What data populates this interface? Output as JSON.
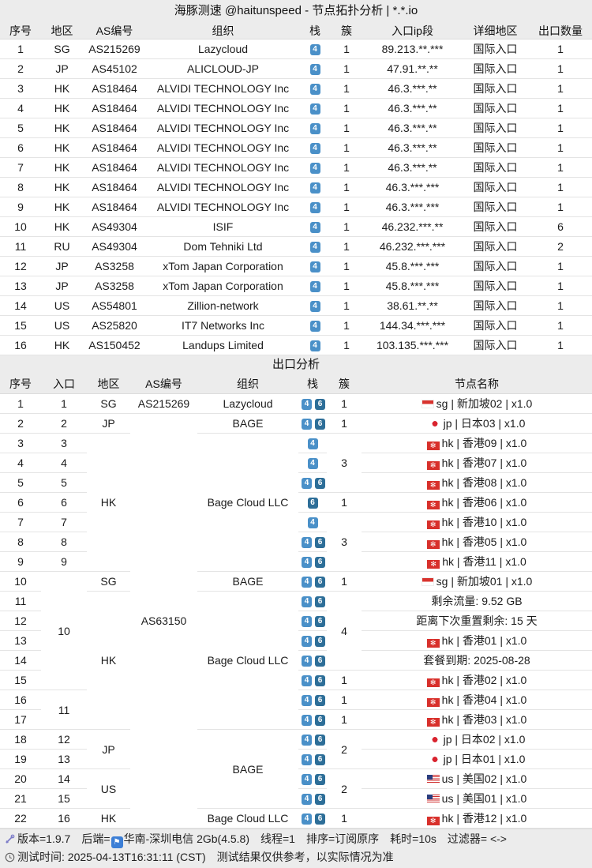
{
  "title": "海豚测速 @haitunspeed - 节点拓扑分析 | *.*.io",
  "colors": {
    "ipv4_badge": "#4a90c8",
    "ipv6_badge": "#2d6e98",
    "backend_badge": "#3d7fd6",
    "header_bg": "#ececec"
  },
  "entry": {
    "headers": [
      "序号",
      "地区",
      "AS编号",
      "组织",
      "栈",
      "簇",
      "入口ip段",
      "详细地区",
      "出口数量"
    ],
    "rows": [
      {
        "no": "1",
        "region": "SG",
        "asn": "AS215269",
        "org": "Lazycloud",
        "stack": [
          "4"
        ],
        "cluster": "1",
        "ip": "89.213.**.***",
        "detail": "国际入口",
        "exits": "1"
      },
      {
        "no": "2",
        "region": "JP",
        "asn": "AS45102",
        "org": "ALICLOUD-JP",
        "stack": [
          "4"
        ],
        "cluster": "1",
        "ip": "47.91.**.**",
        "detail": "国际入口",
        "exits": "1"
      },
      {
        "no": "3",
        "region": "HK",
        "asn": "AS18464",
        "org": "ALVIDI TECHNOLOGY Inc",
        "stack": [
          "4"
        ],
        "cluster": "1",
        "ip": "46.3.***.**",
        "detail": "国际入口",
        "exits": "1"
      },
      {
        "no": "4",
        "region": "HK",
        "asn": "AS18464",
        "org": "ALVIDI TECHNOLOGY Inc",
        "stack": [
          "4"
        ],
        "cluster": "1",
        "ip": "46.3.***.**",
        "detail": "国际入口",
        "exits": "1"
      },
      {
        "no": "5",
        "region": "HK",
        "asn": "AS18464",
        "org": "ALVIDI TECHNOLOGY Inc",
        "stack": [
          "4"
        ],
        "cluster": "1",
        "ip": "46.3.***.**",
        "detail": "国际入口",
        "exits": "1"
      },
      {
        "no": "6",
        "region": "HK",
        "asn": "AS18464",
        "org": "ALVIDI TECHNOLOGY Inc",
        "stack": [
          "4"
        ],
        "cluster": "1",
        "ip": "46.3.***.**",
        "detail": "国际入口",
        "exits": "1"
      },
      {
        "no": "7",
        "region": "HK",
        "asn": "AS18464",
        "org": "ALVIDI TECHNOLOGY Inc",
        "stack": [
          "4"
        ],
        "cluster": "1",
        "ip": "46.3.***.**",
        "detail": "国际入口",
        "exits": "1"
      },
      {
        "no": "8",
        "region": "HK",
        "asn": "AS18464",
        "org": "ALVIDI TECHNOLOGY Inc",
        "stack": [
          "4"
        ],
        "cluster": "1",
        "ip": "46.3.***.***",
        "detail": "国际入口",
        "exits": "1"
      },
      {
        "no": "9",
        "region": "HK",
        "asn": "AS18464",
        "org": "ALVIDI TECHNOLOGY Inc",
        "stack": [
          "4"
        ],
        "cluster": "1",
        "ip": "46.3.***.***",
        "detail": "国际入口",
        "exits": "1"
      },
      {
        "no": "10",
        "region": "HK",
        "asn": "AS49304",
        "org": "ISIF",
        "stack": [
          "4"
        ],
        "cluster": "1",
        "ip": "46.232.***.**",
        "detail": "国际入口",
        "exits": "6"
      },
      {
        "no": "11",
        "region": "RU",
        "asn": "AS49304",
        "org": "Dom Tehniki Ltd",
        "stack": [
          "4"
        ],
        "cluster": "1",
        "ip": "46.232.***.***",
        "detail": "国际入口",
        "exits": "2"
      },
      {
        "no": "12",
        "region": "JP",
        "asn": "AS3258",
        "org": "xTom Japan Corporation",
        "stack": [
          "4"
        ],
        "cluster": "1",
        "ip": "45.8.***.***",
        "detail": "国际入口",
        "exits": "1"
      },
      {
        "no": "13",
        "region": "JP",
        "asn": "AS3258",
        "org": "xTom Japan Corporation",
        "stack": [
          "4"
        ],
        "cluster": "1",
        "ip": "45.8.***.***",
        "detail": "国际入口",
        "exits": "1"
      },
      {
        "no": "14",
        "region": "US",
        "asn": "AS54801",
        "org": "Zillion-network",
        "stack": [
          "4"
        ],
        "cluster": "1",
        "ip": "38.61.**.**",
        "detail": "国际入口",
        "exits": "1"
      },
      {
        "no": "15",
        "region": "US",
        "asn": "AS25820",
        "org": "IT7 Networks Inc",
        "stack": [
          "4"
        ],
        "cluster": "1",
        "ip": "144.34.***.***",
        "detail": "国际入口",
        "exits": "1"
      },
      {
        "no": "16",
        "region": "HK",
        "asn": "AS150452",
        "org": "Landups Limited",
        "stack": [
          "4"
        ],
        "cluster": "1",
        "ip": "103.135.***.***",
        "detail": "国际入口",
        "exits": "1"
      }
    ]
  },
  "exit": {
    "title": "出口分析",
    "headers": [
      "序号",
      "入口",
      "地区",
      "AS编号",
      "组织",
      "栈",
      "簇",
      "节点名称"
    ],
    "rows": [
      {
        "no": "1",
        "entry": {
          "v": "1"
        },
        "region": {
          "v": "SG"
        },
        "asn": {
          "v": "AS215269"
        },
        "org": {
          "v": "Lazycloud"
        },
        "stack": [
          "4",
          "6"
        ],
        "cluster": {
          "v": "1"
        },
        "node": {
          "flag": "sg",
          "text": "sg | 新加坡02 | x1.0"
        }
      },
      {
        "no": "2",
        "entry": {
          "v": "2"
        },
        "region": {
          "v": "JP"
        },
        "asn": {
          "v": "AS63150",
          "span": 21
        },
        "org": {
          "v": "BAGE"
        },
        "stack": [
          "4",
          "6"
        ],
        "cluster": {
          "v": "1"
        },
        "node": {
          "flag": "jp",
          "text": "jp | 日本03 | x1.0"
        }
      },
      {
        "no": "3",
        "entry": {
          "v": "3"
        },
        "region": {
          "v": "HK",
          "span": 7
        },
        "org": {
          "v": "Bage Cloud LLC",
          "span": 7
        },
        "stack": [
          "4"
        ],
        "cluster": {
          "v": "3",
          "span": 3
        },
        "node": {
          "flag": "hk",
          "text": "hk | 香港09 | x1.0"
        }
      },
      {
        "no": "4",
        "entry": {
          "v": "4"
        },
        "stack": [
          "4"
        ],
        "node": {
          "flag": "hk",
          "text": "hk | 香港07 | x1.0"
        }
      },
      {
        "no": "5",
        "entry": {
          "v": "5"
        },
        "stack": [
          "4",
          "6"
        ],
        "node": {
          "flag": "hk",
          "text": "hk | 香港08 | x1.0"
        }
      },
      {
        "no": "6",
        "entry": {
          "v": "6"
        },
        "stack": [
          "6"
        ],
        "cluster": {
          "v": "1"
        },
        "node": {
          "flag": "hk",
          "text": "hk | 香港06 | x1.0"
        }
      },
      {
        "no": "7",
        "entry": {
          "v": "7"
        },
        "stack": [
          "4"
        ],
        "cluster": {
          "v": "3",
          "span": 3
        },
        "node": {
          "flag": "hk",
          "text": "hk | 香港10 | x1.0"
        }
      },
      {
        "no": "8",
        "entry": {
          "v": "8"
        },
        "stack": [
          "4",
          "6"
        ],
        "node": {
          "flag": "hk",
          "text": "hk | 香港05 | x1.0"
        }
      },
      {
        "no": "9",
        "entry": {
          "v": "9"
        },
        "stack": [
          "4",
          "6"
        ],
        "node": {
          "flag": "hk",
          "text": "hk | 香港11 | x1.0"
        }
      },
      {
        "no": "10",
        "entry": {
          "v": "10",
          "span": 6
        },
        "region": {
          "v": "SG"
        },
        "org": {
          "v": "BAGE"
        },
        "stack": [
          "4",
          "6"
        ],
        "cluster": {
          "v": "1"
        },
        "node": {
          "flag": "sg",
          "text": "sg | 新加坡01 | x1.0"
        }
      },
      {
        "no": "11",
        "region": {
          "v": "HK",
          "span": 7
        },
        "org": {
          "v": "Bage Cloud LLC",
          "span": 7
        },
        "stack": [
          "4",
          "6"
        ],
        "cluster": {
          "v": "4",
          "span": 4
        },
        "node": {
          "flag": null,
          "text": "剩余流量:  9.52 GB"
        }
      },
      {
        "no": "12",
        "stack": [
          "4",
          "6"
        ],
        "node": {
          "flag": null,
          "text": "距离下次重置剩余:  15 天"
        }
      },
      {
        "no": "13",
        "stack": [
          "4",
          "6"
        ],
        "node": {
          "flag": "hk",
          "text": "hk | 香港01 | x1.0"
        }
      },
      {
        "no": "14",
        "stack": [
          "4",
          "6"
        ],
        "node": {
          "flag": null,
          "text": "套餐到期:  2025-08-28"
        }
      },
      {
        "no": "15",
        "stack": [
          "4",
          "6"
        ],
        "cluster": {
          "v": "1"
        },
        "node": {
          "flag": "hk",
          "text": "hk | 香港02 | x1.0"
        }
      },
      {
        "no": "16",
        "entry": {
          "v": "11",
          "span": 2
        },
        "stack": [
          "4",
          "6"
        ],
        "cluster": {
          "v": "1"
        },
        "node": {
          "flag": "hk",
          "text": "hk | 香港04 | x1.0"
        }
      },
      {
        "no": "17",
        "stack": [
          "4",
          "6"
        ],
        "cluster": {
          "v": "1"
        },
        "node": {
          "flag": "hk",
          "text": "hk | 香港03 | x1.0"
        }
      },
      {
        "no": "18",
        "entry": {
          "v": "12"
        },
        "region": {
          "v": "JP",
          "span": 2
        },
        "org": {
          "v": "BAGE",
          "span": 4
        },
        "stack": [
          "4",
          "6"
        ],
        "cluster": {
          "v": "2",
          "span": 2
        },
        "node": {
          "flag": "jp",
          "text": "jp | 日本02 | x1.0"
        }
      },
      {
        "no": "19",
        "entry": {
          "v": "13"
        },
        "stack": [
          "4",
          "6"
        ],
        "node": {
          "flag": "jp",
          "text": "jp | 日本01 | x1.0"
        }
      },
      {
        "no": "20",
        "entry": {
          "v": "14"
        },
        "region": {
          "v": "US",
          "span": 2
        },
        "stack": [
          "4",
          "6"
        ],
        "cluster": {
          "v": "2",
          "span": 2
        },
        "node": {
          "flag": "us",
          "text": "us | 美国02 | x1.0"
        }
      },
      {
        "no": "21",
        "entry": {
          "v": "15"
        },
        "stack": [
          "4",
          "6"
        ],
        "node": {
          "flag": "us",
          "text": "us | 美国01 | x1.0"
        }
      },
      {
        "no": "22",
        "entry": {
          "v": "16"
        },
        "region": {
          "v": "HK"
        },
        "org": {
          "v": "Bage Cloud LLC"
        },
        "stack": [
          "4",
          "6"
        ],
        "cluster": {
          "v": "1"
        },
        "node": {
          "flag": "hk",
          "text": "hk | 香港12 | x1.0"
        }
      }
    ]
  },
  "footer": {
    "version": "版本=1.9.7",
    "backend_label": "后端=",
    "backend": "华南-深圳电信 2Gb(4.5.8)",
    "threads": "线程=1",
    "sort": "排序=订阅原序",
    "elapsed": "耗时=10s",
    "filter": "过滤器= <->",
    "test_time": "测试时间: 2025-04-13T16:31:11 (CST)",
    "disclaimer": "测试结果仅供参考，以实际情况为准"
  },
  "icons": {
    "footer_left": "dart-icon",
    "backend": "flag-badge-icon",
    "time": "clock-icon",
    "ipv4": "ipv4-badge",
    "ipv6": "ipv6-badge"
  }
}
